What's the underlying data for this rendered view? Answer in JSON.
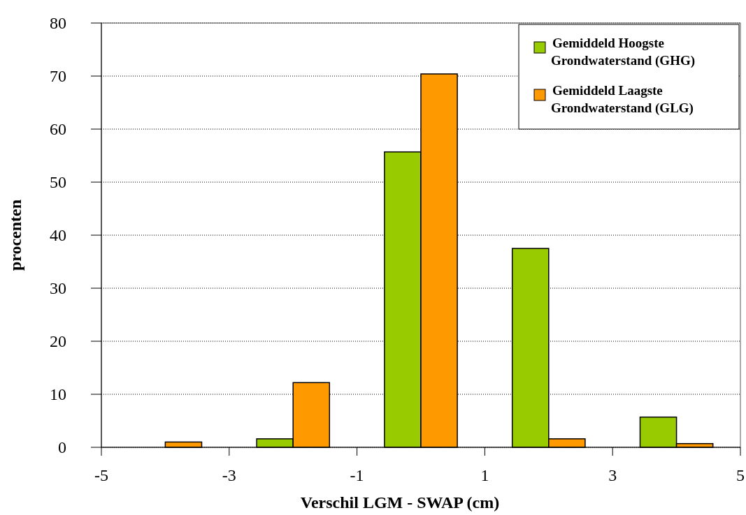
{
  "chart_data": {
    "type": "bar",
    "xlabel": "Verschil LGM - SWAP (cm)",
    "ylabel": "procenten",
    "x": [
      -4,
      -2,
      0,
      2,
      4
    ],
    "series": [
      {
        "name": "Gemiddeld Hoogste Grondwaterstand (GHG)",
        "color": "#99cc00",
        "values": [
          0,
          1.6,
          55.7,
          37.5,
          5.7
        ]
      },
      {
        "name": "Gemiddeld Laagste Grondwaterstand (GLG)",
        "color": "#ff9900",
        "values": [
          1.0,
          12.2,
          70.4,
          1.6,
          0.7
        ]
      }
    ],
    "xlim": [
      -5,
      5
    ],
    "xticks": [
      -5,
      -3,
      -1,
      1,
      3,
      5
    ],
    "ylim": [
      0,
      80
    ],
    "yticks": [
      0,
      10,
      20,
      30,
      40,
      50,
      60,
      70,
      80
    ],
    "grid": "y",
    "legend": "top right"
  }
}
